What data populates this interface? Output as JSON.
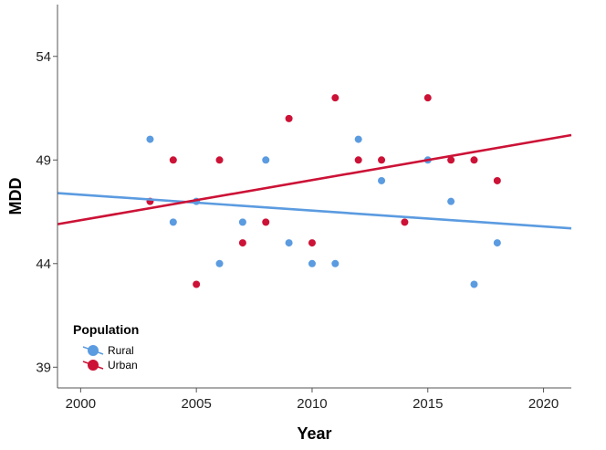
{
  "chart_data": {
    "type": "scatter",
    "xlabel": "Year",
    "ylabel": "MDD",
    "xlim": [
      1999,
      2021.2
    ],
    "ylim": [
      38,
      56.5
    ],
    "x_ticks": [
      "2000",
      "2005",
      "2010",
      "2015",
      "2020"
    ],
    "y_ticks": [
      "39",
      "44",
      "49",
      "54"
    ],
    "grid": false,
    "legend": {
      "title": "Population",
      "placement": "bottom-left"
    },
    "series": [
      {
        "name": "Rural",
        "color": "#5B9BE0",
        "points": [
          [
            2003,
            50
          ],
          [
            2004,
            46
          ],
          [
            2005,
            47
          ],
          [
            2006,
            44
          ],
          [
            2007,
            46
          ],
          [
            2008,
            49
          ],
          [
            2009,
            45
          ],
          [
            2010,
            44
          ],
          [
            2011,
            44
          ],
          [
            2012,
            50
          ],
          [
            2013,
            48
          ],
          [
            2015,
            49
          ],
          [
            2016,
            47
          ],
          [
            2017,
            43
          ],
          [
            2018,
            45
          ]
        ],
        "trend": {
          "x": [
            1999,
            2021.2
          ],
          "y": [
            47.4,
            45.7
          ]
        }
      },
      {
        "name": "Urban",
        "color": "#CC1236",
        "points": [
          [
            2003,
            47
          ],
          [
            2004,
            49
          ],
          [
            2005,
            43
          ],
          [
            2006,
            49
          ],
          [
            2007,
            45
          ],
          [
            2008,
            46
          ],
          [
            2009,
            51
          ],
          [
            2010,
            45
          ],
          [
            2011,
            52
          ],
          [
            2012,
            49
          ],
          [
            2013,
            49
          ],
          [
            2014,
            46
          ],
          [
            2015,
            52
          ],
          [
            2016,
            49
          ],
          [
            2017,
            49
          ],
          [
            2018,
            48
          ]
        ],
        "trend": {
          "x": [
            1999,
            2021.2
          ],
          "y": [
            45.9,
            50.2
          ]
        }
      }
    ]
  }
}
